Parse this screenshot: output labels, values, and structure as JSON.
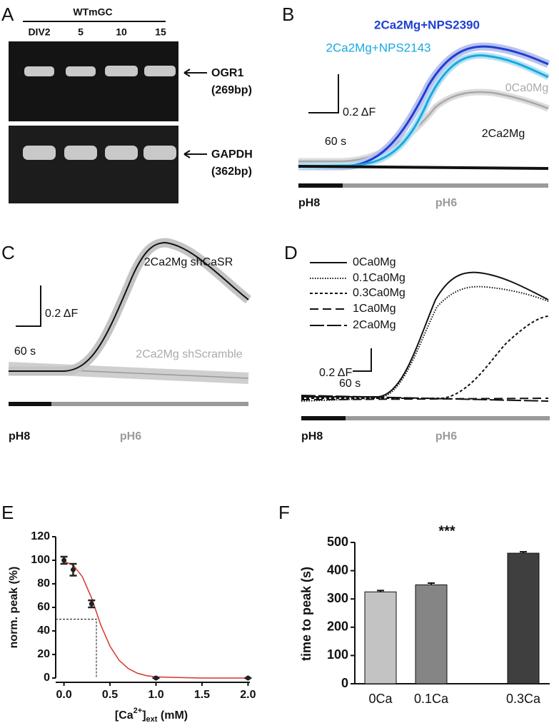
{
  "panels": {
    "A": {
      "letter": "A",
      "group": "WTmGC",
      "lanes": [
        "DIV2",
        "5",
        "10",
        "15"
      ],
      "bands": [
        {
          "name": "OGR1",
          "size": "(269bp)"
        },
        {
          "name": "GAPDH",
          "size": "(362bp)"
        }
      ]
    },
    "B": {
      "letter": "B",
      "traces": [
        "2Ca2Mg+NPS2390",
        "2Ca2Mg+NPS2143",
        "0Ca0Mg",
        "2Ca2Mg"
      ],
      "scale_y": "0.2 ΔF",
      "scale_x": "60 s",
      "ph": [
        "pH8",
        "pH6"
      ]
    },
    "C": {
      "letter": "C",
      "traces": [
        "2Ca2Mg shCaSR",
        "2Ca2Mg shScramble"
      ],
      "scale_y": "0.2 ΔF",
      "scale_x": "60 s",
      "ph": [
        "pH8",
        "pH6"
      ]
    },
    "D": {
      "letter": "D",
      "traces": [
        "0Ca0Mg",
        "0.1Ca0Mg",
        "0.3Ca0Mg",
        "1Ca0Mg",
        "2Ca0Mg"
      ],
      "scale_y": "0.2 ΔF",
      "scale_x": "60 s",
      "ph": [
        "pH8",
        "pH6"
      ]
    }
  },
  "chart_data": [
    {
      "type": "scatter",
      "letter": "E",
      "y_label": "norm. peak (%)",
      "x_label": [
        "[Ca",
        "2+",
        "]",
        "ext",
        " (mM)"
      ],
      "points": {
        "x": [
          0,
          0.1,
          0.3,
          1,
          2
        ],
        "values": [
          100,
          92,
          63,
          0,
          0
        ],
        "errors": [
          3,
          5,
          3,
          0,
          0
        ],
        "color": "#222222"
      },
      "fit": {
        "x": [
          0,
          0.1,
          0.2,
          0.3,
          0.4,
          0.5,
          0.6,
          0.7,
          0.8,
          0.9,
          1.0,
          1.2,
          1.5,
          2.0
        ],
        "values": [
          99,
          96,
          86,
          68,
          45,
          27,
          15,
          8,
          4,
          2,
          1,
          0.5,
          0,
          0
        ],
        "color": "#d9342b"
      },
      "xlim": [
        -0.09,
        2.02
      ],
      "ylim": [
        0,
        120
      ],
      "xticks": [
        {
          "value": 0,
          "label": "0.0"
        },
        {
          "value": 0.5,
          "label": "0.5"
        },
        {
          "value": 1,
          "label": "1.0"
        },
        {
          "value": 1.5,
          "label": "1.5"
        },
        {
          "value": 2,
          "label": "2.0"
        }
      ],
      "yticks": [
        0,
        20,
        40,
        60,
        80,
        100,
        120
      ]
    },
    {
      "type": "bar",
      "letter": "F",
      "y_label": "time to peak (s)",
      "categories": [
        "0Ca",
        "0.1Ca",
        "0.3Ca"
      ],
      "values": [
        325,
        350,
        462
      ],
      "errors": [
        5,
        6,
        5
      ],
      "colors": [
        "#c3c3c3",
        "#858585",
        "#3f3f3f"
      ],
      "annotation": "***",
      "ylim": [
        0,
        500
      ],
      "yticks": [
        0,
        100,
        200,
        300,
        400,
        500
      ]
    }
  ]
}
